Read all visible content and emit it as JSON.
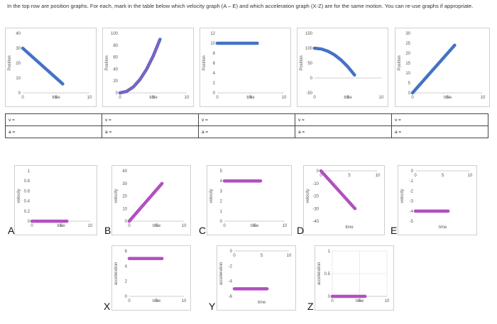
{
  "instructions": "In the top row are position graphs.  For each, mark in the table below which velocity graph (A – E) and which acceleration graph (X-Z) are for the same motion. You can re-use graphs if appropriate.",
  "colors": {
    "series_blue": "#4472c4",
    "series_purple": "#b24fc0",
    "frame": "#cfcfcf",
    "axis": "#bfbfbf",
    "text": "#555555"
  },
  "answer_table": {
    "velocity_label": "v =",
    "acceleration_label": "a =",
    "columns": 5
  },
  "labels": {
    "velocity_letters": [
      "A",
      "B",
      "C",
      "D",
      "E"
    ],
    "acceleration_letters": [
      "X",
      "Y",
      "Z"
    ]
  },
  "chart_data": [
    {
      "group": "position",
      "type": "line",
      "ylabel": "Position",
      "xlabel": "time",
      "xlim": [
        0,
        10
      ],
      "ylim": [
        0,
        40
      ],
      "xticks": [
        "0",
        "5",
        "10"
      ],
      "yticks": [
        "0",
        "10",
        "20",
        "30",
        "40"
      ],
      "series": [
        {
          "color": "#4472c4",
          "x": [
            0,
            6
          ],
          "y": [
            30,
            6
          ]
        }
      ]
    },
    {
      "group": "position",
      "type": "line",
      "ylabel": "Position",
      "xlabel": "time",
      "xlim": [
        0,
        10
      ],
      "ylim": [
        0,
        100
      ],
      "xticks": [
        "0",
        "5",
        "10"
      ],
      "yticks": [
        "0",
        "20",
        "40",
        "60",
        "80",
        "100"
      ],
      "series": [
        {
          "color": "#4472c4",
          "x": [
            0,
            1,
            2,
            3,
            4,
            5,
            6
          ],
          "y": [
            0,
            2.5,
            10,
            22.5,
            40,
            62.5,
            90
          ]
        },
        {
          "color": "#b24fc0",
          "x": [
            0,
            1,
            2,
            3,
            4,
            5,
            6
          ],
          "y": [
            0,
            2.5,
            10,
            22.5,
            40,
            62.5,
            90
          ],
          "style": "dashed"
        }
      ]
    },
    {
      "group": "position",
      "type": "line",
      "ylabel": "Position",
      "xlabel": "time",
      "xlim": [
        0,
        10
      ],
      "ylim": [
        0,
        12
      ],
      "xticks": [
        "0",
        "5",
        "10"
      ],
      "yticks": [
        "0",
        "2",
        "4",
        "6",
        "8",
        "10",
        "12"
      ],
      "series": [
        {
          "color": "#4472c4",
          "x": [
            0,
            6
          ],
          "y": [
            10,
            10
          ]
        }
      ]
    },
    {
      "group": "position",
      "type": "line",
      "ylabel": "Position",
      "xlabel": "time",
      "xlim": [
        0,
        10
      ],
      "ylim": [
        -50,
        150
      ],
      "xticks": [
        "0",
        "5",
        "10"
      ],
      "yticks": [
        "-50",
        "0",
        "50",
        "100",
        "150"
      ],
      "series": [
        {
          "color": "#4472c4",
          "x": [
            0,
            1,
            2,
            3,
            4,
            5,
            6
          ],
          "y": [
            100,
            97.5,
            90,
            77.5,
            60,
            37.5,
            10
          ]
        }
      ]
    },
    {
      "group": "position",
      "type": "line",
      "ylabel": "Position",
      "xlabel": "time",
      "xlim": [
        0,
        10
      ],
      "ylim": [
        0,
        30
      ],
      "xticks": [
        "0",
        "5",
        "10"
      ],
      "yticks": [
        "0",
        "5",
        "10",
        "15",
        "20",
        "25",
        "30"
      ],
      "series": [
        {
          "color": "#4472c4",
          "x": [
            0,
            6
          ],
          "y": [
            0,
            24
          ]
        }
      ]
    },
    {
      "group": "velocity",
      "type": "line",
      "ylabel": "velocity",
      "xlabel": "time",
      "xlim": [
        0,
        10
      ],
      "ylim": [
        0,
        1
      ],
      "xticks": [
        "0",
        "5",
        "10"
      ],
      "yticks": [
        "0",
        "0.2",
        "0.4",
        "0.6",
        "0.8",
        "1"
      ],
      "series": [
        {
          "color": "#b24fc0",
          "x": [
            0,
            6
          ],
          "y": [
            0,
            0
          ]
        }
      ]
    },
    {
      "group": "velocity",
      "type": "line",
      "ylabel": "velocity",
      "xlabel": "time",
      "xlim": [
        0,
        10
      ],
      "ylim": [
        0,
        40
      ],
      "xticks": [
        "0",
        "5",
        "10"
      ],
      "yticks": [
        "0",
        "10",
        "20",
        "30",
        "40"
      ],
      "series": [
        {
          "color": "#b24fc0",
          "x": [
            0,
            6
          ],
          "y": [
            0,
            30
          ]
        }
      ]
    },
    {
      "group": "velocity",
      "type": "line",
      "ylabel": "velocity",
      "xlabel": "time",
      "xlim": [
        0,
        10
      ],
      "ylim": [
        0,
        5
      ],
      "xticks": [
        "0",
        "5",
        "10"
      ],
      "yticks": [
        "0",
        "1",
        "2",
        "3",
        "4",
        "5"
      ],
      "series": [
        {
          "color": "#b24fc0",
          "x": [
            0,
            6
          ],
          "y": [
            4,
            4
          ]
        }
      ]
    },
    {
      "group": "velocity",
      "type": "line",
      "ylabel": "velocity",
      "xlabel": "time",
      "xlim": [
        0,
        10
      ],
      "ylim": [
        -40,
        0
      ],
      "x_axis_at_top": true,
      "xticks": [
        "0",
        "5",
        "10"
      ],
      "yticks": [
        "-40",
        "-30",
        "-20",
        "-10",
        "0"
      ],
      "series": [
        {
          "color": "#b24fc0",
          "x": [
            0,
            6
          ],
          "y": [
            0,
            -30
          ]
        }
      ]
    },
    {
      "group": "velocity",
      "type": "line",
      "ylabel": "velocity",
      "xlabel": "time",
      "xlim": [
        0,
        10
      ],
      "ylim": [
        -5,
        0
      ],
      "x_axis_at_top": true,
      "xticks": [
        "0",
        "5",
        "10"
      ],
      "yticks": [
        "-5",
        "-4",
        "-3",
        "-2",
        "-1",
        "0"
      ],
      "series": [
        {
          "color": "#b24fc0",
          "x": [
            0,
            6
          ],
          "y": [
            -4,
            -4
          ]
        }
      ]
    },
    {
      "group": "acceleration",
      "type": "line",
      "ylabel": "acceleration",
      "xlabel": "time",
      "xlim": [
        0,
        10
      ],
      "ylim": [
        0,
        6
      ],
      "xticks": [
        "0",
        "5",
        "10"
      ],
      "yticks": [
        "0",
        "2",
        "4",
        "6"
      ],
      "series": [
        {
          "color": "#b24fc0",
          "x": [
            0,
            6
          ],
          "y": [
            5,
            5
          ]
        }
      ]
    },
    {
      "group": "acceleration",
      "type": "line",
      "ylabel": "acceleration",
      "xlabel": "time",
      "xlim": [
        0,
        10
      ],
      "ylim": [
        -6,
        0
      ],
      "x_axis_at_top": true,
      "xticks": [
        "0",
        "5",
        "10"
      ],
      "yticks": [
        "-6",
        "-4",
        "-2",
        "0"
      ],
      "series": [
        {
          "color": "#b24fc0",
          "x": [
            0,
            6
          ],
          "y": [
            -5,
            -5
          ]
        }
      ]
    },
    {
      "group": "acceleration",
      "type": "line",
      "ylabel": "acceleration",
      "xlabel": "time",
      "xlim": [
        0,
        10
      ],
      "ylim": [
        0,
        1
      ],
      "grid": true,
      "xticks": [
        "0",
        "5",
        "10"
      ],
      "yticks": [
        "0",
        "0.5",
        "1"
      ],
      "series": [
        {
          "color": "#b24fc0",
          "x": [
            0,
            6
          ],
          "y": [
            0,
            0
          ]
        }
      ]
    }
  ]
}
